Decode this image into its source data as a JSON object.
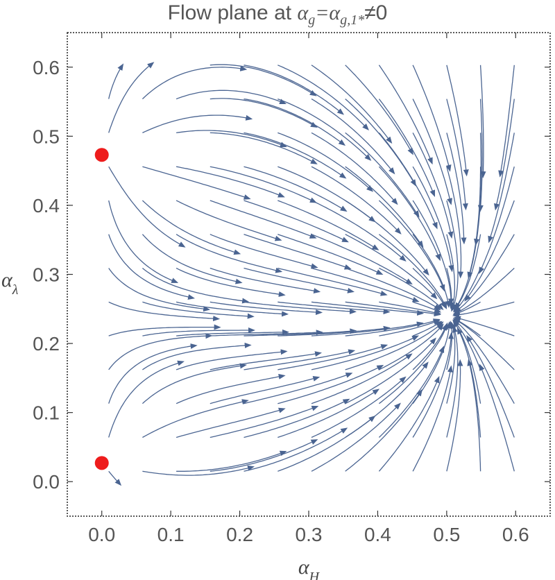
{
  "chart_data": {
    "type": "streamplot",
    "title": "Flow plane at αg=αg,1*≠0",
    "xlabel": "αH",
    "ylabel": "αλ",
    "xlim": [
      -0.05,
      0.65
    ],
    "ylim": [
      -0.05,
      0.65
    ],
    "x_ticks": [
      "0.0",
      "0.1",
      "0.2",
      "0.3",
      "0.4",
      "0.5",
      "0.6"
    ],
    "y_ticks": [
      "0.0",
      "0.1",
      "0.2",
      "0.3",
      "0.4",
      "0.5",
      "0.6"
    ],
    "grid": false,
    "stream_color": "#4a6491",
    "fixed_point_color": "#ee1c1c",
    "fixed_points": [
      {
        "x": 0.0,
        "y": 0.473
      },
      {
        "x": 0.0,
        "y": 0.027
      }
    ],
    "attractor": {
      "x": 0.5,
      "y": 0.24
    }
  }
}
